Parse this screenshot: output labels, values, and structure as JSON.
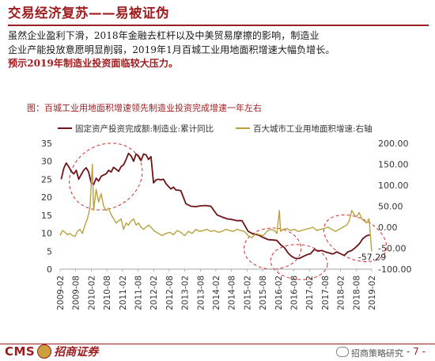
{
  "slide": {
    "title": "交易经济复苏——易被证伪",
    "paragraph_lines": [
      "虽然企业盈利下滑，2018年金融去杠杆以及中美贸易摩擦的影响，制造业",
      "企业产能投放意愿明显削弱，2019年1月百城工业用地面积增速大幅负增长。"
    ],
    "emphasis_line": "预示2019年制造业投资面临较大压力。",
    "page_number": "- 7 -"
  },
  "footer": {
    "logo_text": "CMS",
    "logo_cn": "招商证券",
    "watermark": "招商策略研究"
  },
  "colors": {
    "accent": "#9e1b1e",
    "series_investment": "#6d1419",
    "series_land": "#b8a23e",
    "highlight_ellipse": "#d32f2f"
  },
  "chart_data": {
    "type": "line",
    "title": "图：百城工业用地面积增速领先制造业投资完成增速一年左右",
    "y_left": {
      "lim": [
        0,
        35
      ],
      "ticks": [
        "0",
        "5",
        "10",
        "15",
        "20",
        "25",
        "30",
        "35"
      ]
    },
    "y_right": {
      "lim": [
        -100,
        200
      ],
      "ticks": [
        "-100.00",
        "-50.00",
        "0.00",
        "50.00",
        "100.00",
        "150.00",
        "200.00"
      ]
    },
    "x_ticks": [
      "2009-02",
      "2009-08",
      "2010-02",
      "2010-08",
      "2011-02",
      "2011-08",
      "2012-02",
      "2012-08",
      "2013-02",
      "2013-08",
      "2014-02",
      "2014-08",
      "2015-02",
      "2015-08",
      "2016-02",
      "2016-08",
      "2017-02",
      "2017-08",
      "2018-02",
      "2018-08",
      "2019-02"
    ],
    "grid": false,
    "legend_position": "top",
    "annotation": "-57.29",
    "series": [
      {
        "name": "固定资产投资完成额:制造业:累计同比",
        "axis": "left",
        "points": [
          [
            2009.12,
            25.0
          ],
          [
            2009.2,
            28.0
          ],
          [
            2009.28,
            29.5
          ],
          [
            2009.36,
            28.5
          ],
          [
            2009.44,
            27.2
          ],
          [
            2009.52,
            26.5
          ],
          [
            2009.6,
            27.5
          ],
          [
            2009.68,
            25.0
          ],
          [
            2009.76,
            26.3
          ],
          [
            2009.84,
            27.5
          ],
          [
            2009.92,
            28.2
          ],
          [
            2010.0,
            27.0
          ],
          [
            2010.08,
            24.0
          ],
          [
            2010.16,
            23.5
          ],
          [
            2010.24,
            25.3
          ],
          [
            2010.32,
            24.5
          ],
          [
            2010.4,
            25.8
          ],
          [
            2010.48,
            26.2
          ],
          [
            2010.56,
            26.5
          ],
          [
            2010.64,
            27.5
          ],
          [
            2010.72,
            27.0
          ],
          [
            2010.8,
            28.3
          ],
          [
            2010.88,
            27.8
          ],
          [
            2010.96,
            27.2
          ],
          [
            2011.04,
            28.5
          ],
          [
            2011.12,
            29.0
          ],
          [
            2011.2,
            30.5
          ],
          [
            2011.28,
            32.2
          ],
          [
            2011.36,
            31.5
          ],
          [
            2011.44,
            30.0
          ],
          [
            2011.52,
            32.0
          ],
          [
            2011.6,
            31.5
          ],
          [
            2011.68,
            30.2
          ],
          [
            2011.76,
            32.0
          ],
          [
            2011.84,
            31.8
          ],
          [
            2011.92,
            30.5
          ],
          [
            2012.0,
            31.3
          ],
          [
            2012.08,
            24.0
          ],
          [
            2012.16,
            24.8
          ],
          [
            2012.24,
            25.0
          ],
          [
            2012.32,
            24.8
          ],
          [
            2012.4,
            25.0
          ],
          [
            2012.48,
            23.8
          ],
          [
            2012.56,
            23.0
          ],
          [
            2012.64,
            22.3
          ],
          [
            2012.72,
            22.8
          ],
          [
            2012.8,
            22.0
          ],
          [
            2012.88,
            22.0
          ],
          [
            2012.96,
            21.8
          ],
          [
            2013.12,
            18.2
          ],
          [
            2013.28,
            17.5
          ],
          [
            2013.44,
            17.4
          ],
          [
            2013.6,
            17.6
          ],
          [
            2013.76,
            17.7
          ],
          [
            2013.92,
            17.5
          ],
          [
            2014.12,
            15.1
          ],
          [
            2014.28,
            14.5
          ],
          [
            2014.44,
            14.0
          ],
          [
            2014.6,
            13.8
          ],
          [
            2014.76,
            13.5
          ],
          [
            2014.92,
            13.5
          ],
          [
            2015.12,
            10.5
          ],
          [
            2015.28,
            9.8
          ],
          [
            2015.44,
            9.5
          ],
          [
            2015.6,
            8.8
          ],
          [
            2015.76,
            8.2
          ],
          [
            2015.92,
            8.1
          ],
          [
            2016.04,
            8.0
          ],
          [
            2016.16,
            6.8
          ],
          [
            2016.28,
            6.0
          ],
          [
            2016.4,
            4.5
          ],
          [
            2016.52,
            3.5
          ],
          [
            2016.64,
            3.0
          ],
          [
            2016.76,
            3.0
          ],
          [
            2016.88,
            3.5
          ],
          [
            2017.0,
            4.0
          ],
          [
            2017.12,
            4.3
          ],
          [
            2017.24,
            5.5
          ],
          [
            2017.36,
            5.0
          ],
          [
            2017.48,
            5.2
          ],
          [
            2017.6,
            4.8
          ],
          [
            2017.72,
            4.5
          ],
          [
            2017.84,
            4.2
          ],
          [
            2017.96,
            4.8
          ],
          [
            2018.08,
            4.3
          ],
          [
            2018.2,
            3.8
          ],
          [
            2018.32,
            4.8
          ],
          [
            2018.44,
            5.2
          ],
          [
            2018.56,
            6.0
          ],
          [
            2018.68,
            7.0
          ],
          [
            2018.8,
            8.5
          ],
          [
            2018.92,
            9.3
          ],
          [
            2019.02,
            9.5
          ]
        ]
      },
      {
        "name": "百大城市工业用地面积增速:右轴",
        "axis": "right",
        "points": [
          [
            2009.08,
            -20
          ],
          [
            2009.16,
            -8
          ],
          [
            2009.24,
            -12
          ],
          [
            2009.32,
            -18
          ],
          [
            2009.4,
            -15
          ],
          [
            2009.48,
            -20
          ],
          [
            2009.56,
            -22
          ],
          [
            2009.64,
            -10
          ],
          [
            2009.72,
            -5
          ],
          [
            2009.8,
            -15
          ],
          [
            2009.88,
            5
          ],
          [
            2009.96,
            20
          ],
          [
            2010.04,
            45
          ],
          [
            2010.12,
            150
          ],
          [
            2010.16,
            40
          ],
          [
            2010.24,
            90
          ],
          [
            2010.32,
            60
          ],
          [
            2010.4,
            80
          ],
          [
            2010.48,
            50
          ],
          [
            2010.56,
            40
          ],
          [
            2010.64,
            45
          ],
          [
            2010.72,
            30
          ],
          [
            2010.8,
            20
          ],
          [
            2010.88,
            10
          ],
          [
            2010.96,
            15
          ],
          [
            2011.04,
            20
          ],
          [
            2011.12,
            -5
          ],
          [
            2011.2,
            10
          ],
          [
            2011.28,
            5
          ],
          [
            2011.36,
            15
          ],
          [
            2011.44,
            20
          ],
          [
            2011.52,
            5
          ],
          [
            2011.6,
            10
          ],
          [
            2011.68,
            0
          ],
          [
            2011.76,
            -5
          ],
          [
            2011.84,
            0
          ],
          [
            2011.92,
            5
          ],
          [
            2012.0,
            0
          ],
          [
            2012.12,
            -10
          ],
          [
            2012.24,
            -15
          ],
          [
            2012.36,
            -20
          ],
          [
            2012.48,
            -15
          ],
          [
            2012.6,
            -12
          ],
          [
            2012.72,
            -18
          ],
          [
            2012.84,
            -8
          ],
          [
            2012.96,
            -12
          ],
          [
            2013.08,
            -20
          ],
          [
            2013.2,
            -10
          ],
          [
            2013.32,
            -15
          ],
          [
            2013.44,
            -5
          ],
          [
            2013.56,
            -10
          ],
          [
            2013.68,
            -8
          ],
          [
            2013.8,
            -5
          ],
          [
            2013.92,
            -10
          ],
          [
            2014.04,
            -8
          ],
          [
            2014.16,
            -12
          ],
          [
            2014.28,
            -10
          ],
          [
            2014.4,
            -5
          ],
          [
            2014.52,
            -8
          ],
          [
            2014.64,
            -10
          ],
          [
            2014.76,
            -5
          ],
          [
            2014.88,
            -8
          ],
          [
            2015.0,
            -10
          ],
          [
            2015.12,
            -20
          ],
          [
            2015.24,
            -25
          ],
          [
            2015.36,
            -15
          ],
          [
            2015.48,
            -18
          ],
          [
            2015.6,
            -20
          ],
          [
            2015.72,
            -10
          ],
          [
            2015.84,
            -5
          ],
          [
            2015.96,
            -8
          ],
          [
            2016.04,
            -15
          ],
          [
            2016.12,
            40
          ],
          [
            2016.16,
            -10
          ],
          [
            2016.24,
            -5
          ],
          [
            2016.36,
            -3
          ],
          [
            2016.48,
            -8
          ],
          [
            2016.6,
            -5
          ],
          [
            2016.72,
            -10
          ],
          [
            2016.84,
            -8
          ],
          [
            2016.96,
            -5
          ],
          [
            2017.08,
            -3
          ],
          [
            2017.2,
            0
          ],
          [
            2017.32,
            -8
          ],
          [
            2017.44,
            -5
          ],
          [
            2017.56,
            -3
          ],
          [
            2017.68,
            0
          ],
          [
            2017.8,
            -5
          ],
          [
            2017.92,
            -10
          ],
          [
            2018.04,
            -5
          ],
          [
            2018.16,
            0
          ],
          [
            2018.28,
            5
          ],
          [
            2018.36,
            15
          ],
          [
            2018.44,
            40
          ],
          [
            2018.52,
            30
          ],
          [
            2018.6,
            25
          ],
          [
            2018.68,
            35
          ],
          [
            2018.76,
            20
          ],
          [
            2018.84,
            15
          ],
          [
            2018.92,
            10
          ],
          [
            2019.0,
            20
          ],
          [
            2019.08,
            -57.29
          ]
        ]
      }
    ],
    "highlight_ellipses": 4
  }
}
